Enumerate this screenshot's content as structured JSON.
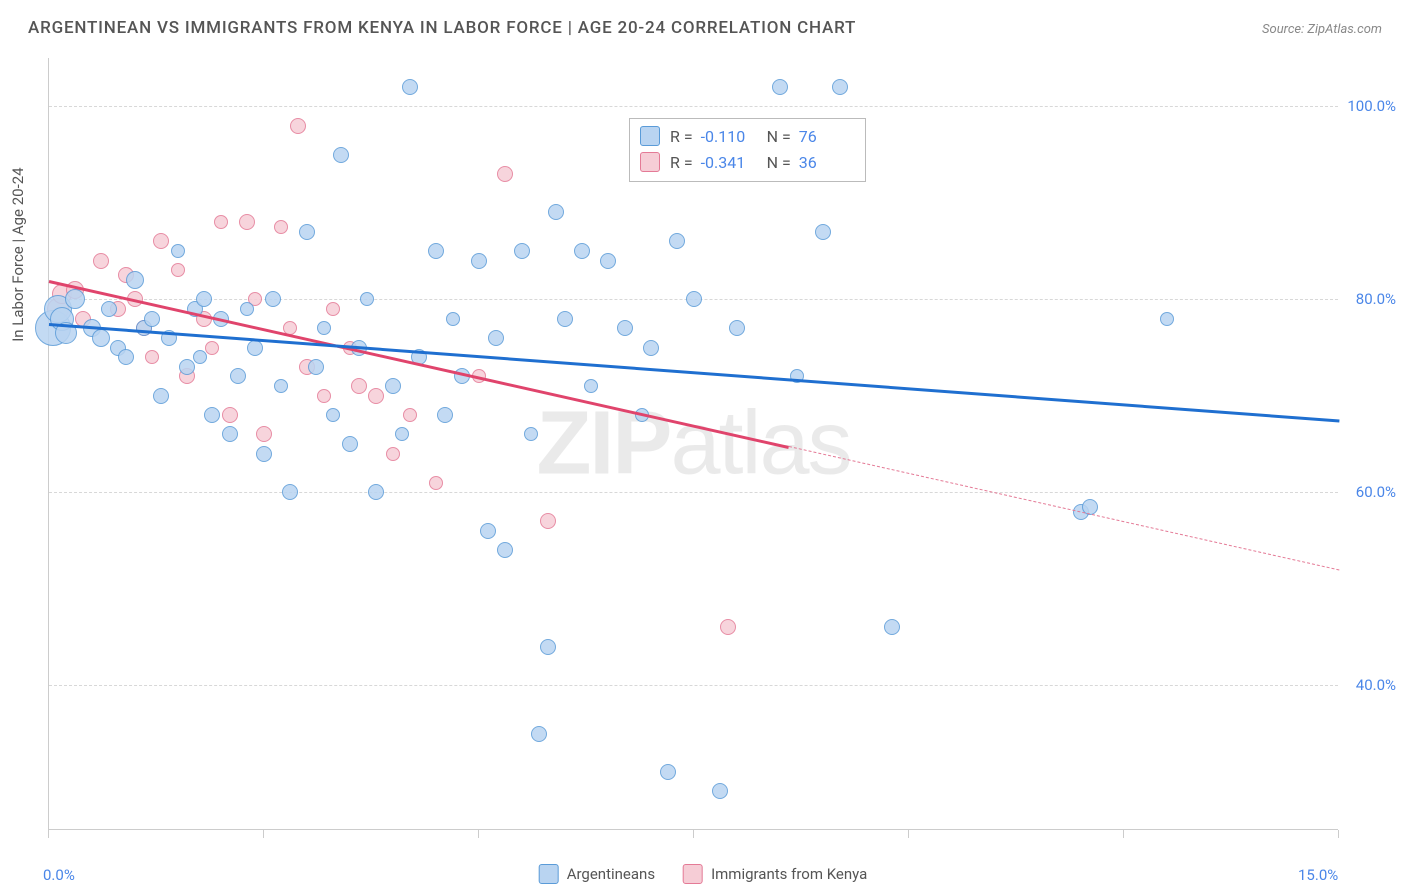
{
  "title": "ARGENTINEAN VS IMMIGRANTS FROM KENYA IN LABOR FORCE | AGE 20-24 CORRELATION CHART",
  "source": "Source: ZipAtlas.com",
  "ylabel": "In Labor Force | Age 20-24",
  "watermark_a": "ZIP",
  "watermark_b": "atlas",
  "chart": {
    "type": "scatter",
    "background_color": "#ffffff",
    "grid_color": "#d8d8d8",
    "axis_color": "#cccccc",
    "tick_label_color": "#4a86e8",
    "xlim": [
      0,
      15
    ],
    "ylim": [
      25,
      105
    ],
    "yticks": [
      40,
      60,
      80,
      100
    ],
    "ytick_labels": [
      "40.0%",
      "60.0%",
      "80.0%",
      "100.0%"
    ],
    "xtick_positions": [
      0,
      2.5,
      5,
      7.5,
      10,
      12.5,
      15
    ],
    "xtick_labels_shown": {
      "0": "0.0%",
      "15": "15.0%"
    }
  },
  "series": {
    "argentineans": {
      "label": "Argentineans",
      "fill": "#b9d4f1",
      "stroke": "#5a9bd8",
      "line_color": "#1f6fd0",
      "r_value": "-0.110",
      "n_value": "76",
      "trend": {
        "x1": 0,
        "y1": 77.5,
        "x2": 15,
        "y2": 67.5,
        "solid_until_x": 15
      },
      "points": [
        [
          0.05,
          77,
          18
        ],
        [
          0.1,
          79,
          14
        ],
        [
          0.15,
          78,
          12
        ],
        [
          0.2,
          76.5,
          11
        ],
        [
          0.3,
          80,
          10
        ],
        [
          0.5,
          77,
          9
        ],
        [
          0.6,
          76,
          9
        ],
        [
          0.7,
          79,
          8
        ],
        [
          0.8,
          75,
          8
        ],
        [
          0.9,
          74,
          8
        ],
        [
          1.0,
          82,
          9
        ],
        [
          1.1,
          77,
          8
        ],
        [
          1.2,
          78,
          8
        ],
        [
          1.3,
          70,
          8
        ],
        [
          1.4,
          76,
          8
        ],
        [
          1.5,
          85,
          7
        ],
        [
          1.6,
          73,
          8
        ],
        [
          1.7,
          79,
          8
        ],
        [
          1.75,
          74,
          7
        ],
        [
          1.8,
          80,
          8
        ],
        [
          1.9,
          68,
          8
        ],
        [
          2.0,
          78,
          8
        ],
        [
          2.1,
          66,
          8
        ],
        [
          2.2,
          72,
          8
        ],
        [
          2.3,
          79,
          7
        ],
        [
          2.4,
          75,
          8
        ],
        [
          2.5,
          64,
          8
        ],
        [
          2.6,
          80,
          8
        ],
        [
          2.7,
          71,
          7
        ],
        [
          2.8,
          60,
          8
        ],
        [
          3.0,
          87,
          8
        ],
        [
          3.1,
          73,
          8
        ],
        [
          3.2,
          77,
          7
        ],
        [
          3.3,
          68,
          7
        ],
        [
          3.4,
          95,
          8
        ],
        [
          3.5,
          65,
          8
        ],
        [
          3.6,
          75,
          8
        ],
        [
          3.7,
          80,
          7
        ],
        [
          3.8,
          60,
          8
        ],
        [
          4.0,
          71,
          8
        ],
        [
          4.1,
          66,
          7
        ],
        [
          4.2,
          102,
          8
        ],
        [
          4.3,
          74,
          8
        ],
        [
          4.5,
          85,
          8
        ],
        [
          4.6,
          68,
          8
        ],
        [
          4.7,
          78,
          7
        ],
        [
          4.8,
          72,
          8
        ],
        [
          5.0,
          84,
          8
        ],
        [
          5.1,
          56,
          8
        ],
        [
          5.2,
          76,
          8
        ],
        [
          5.3,
          54,
          8
        ],
        [
          5.5,
          85,
          8
        ],
        [
          5.6,
          66,
          7
        ],
        [
          5.7,
          35,
          8
        ],
        [
          5.8,
          44,
          8
        ],
        [
          5.9,
          89,
          8
        ],
        [
          6.0,
          78,
          8
        ],
        [
          6.2,
          85,
          8
        ],
        [
          6.3,
          71,
          7
        ],
        [
          6.5,
          84,
          8
        ],
        [
          6.7,
          77,
          8
        ],
        [
          6.9,
          68,
          7
        ],
        [
          7.0,
          75,
          8
        ],
        [
          7.2,
          31,
          8
        ],
        [
          7.3,
          86,
          8
        ],
        [
          7.5,
          80,
          8
        ],
        [
          7.8,
          29,
          8
        ],
        [
          8.0,
          77,
          8
        ],
        [
          8.5,
          102,
          8
        ],
        [
          8.7,
          72,
          7
        ],
        [
          9.0,
          87,
          8
        ],
        [
          9.2,
          102,
          8
        ],
        [
          9.8,
          46,
          8
        ],
        [
          12.0,
          58,
          8
        ],
        [
          12.1,
          58.5,
          8
        ],
        [
          13.0,
          78,
          7
        ]
      ]
    },
    "kenya": {
      "label": "Immigrants from Kenya",
      "fill": "#f6cdd6",
      "stroke": "#e47a96",
      "line_color": "#e0446c",
      "r_value": "-0.341",
      "n_value": "36",
      "trend": {
        "x1": 0,
        "y1": 82,
        "x2": 15,
        "y2": 52,
        "solid_until_x": 8.6
      },
      "points": [
        [
          0.1,
          79,
          11
        ],
        [
          0.15,
          80.5,
          10
        ],
        [
          0.3,
          81,
          9
        ],
        [
          0.4,
          78,
          8
        ],
        [
          0.6,
          84,
          8
        ],
        [
          0.8,
          79,
          8
        ],
        [
          0.9,
          82.5,
          8
        ],
        [
          1.0,
          80,
          8
        ],
        [
          1.1,
          77,
          8
        ],
        [
          1.2,
          74,
          7
        ],
        [
          1.3,
          86,
          8
        ],
        [
          1.5,
          83,
          7
        ],
        [
          1.6,
          72,
          8
        ],
        [
          1.8,
          78,
          8
        ],
        [
          1.9,
          75,
          7
        ],
        [
          2.0,
          88,
          7
        ],
        [
          2.1,
          68,
          8
        ],
        [
          2.3,
          88,
          8
        ],
        [
          2.4,
          80,
          7
        ],
        [
          2.5,
          66,
          8
        ],
        [
          2.7,
          87.5,
          7
        ],
        [
          2.8,
          77,
          7
        ],
        [
          2.9,
          98,
          8
        ],
        [
          3.0,
          73,
          8
        ],
        [
          3.2,
          70,
          7
        ],
        [
          3.3,
          79,
          7
        ],
        [
          3.5,
          75,
          7
        ],
        [
          3.6,
          71,
          8
        ],
        [
          3.8,
          70,
          8
        ],
        [
          4.0,
          64,
          7
        ],
        [
          4.2,
          68,
          7
        ],
        [
          4.5,
          61,
          7
        ],
        [
          5.0,
          72,
          7
        ],
        [
          5.3,
          93,
          8
        ],
        [
          5.8,
          57,
          8
        ],
        [
          7.9,
          46,
          8
        ]
      ]
    }
  },
  "stats_box": {
    "r_label": "R =",
    "n_label": "N ="
  }
}
